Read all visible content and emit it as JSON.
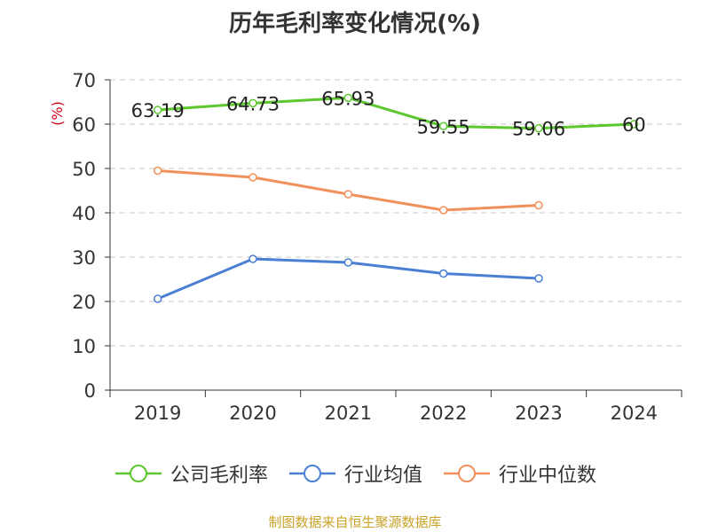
{
  "chart_data": {
    "type": "line",
    "title": "历年毛利率变化情况(%)",
    "ylabel": "(%)",
    "xlabel": "",
    "categories": [
      "2019",
      "2020",
      "2021",
      "2022",
      "2023",
      "2024"
    ],
    "yticks": [
      "0",
      "10",
      "20",
      "30",
      "40",
      "50",
      "60",
      "70"
    ],
    "ylim": [
      0,
      70
    ],
    "grid": true,
    "legend_position": "bottom",
    "series": [
      {
        "name": "公司毛利率",
        "color": "#5cc72e",
        "values": [
          63.19,
          64.73,
          65.93,
          59.55,
          59.06,
          60
        ],
        "labels": [
          "63.19",
          "64.73",
          "65.93",
          "59.55",
          "59.06",
          "60"
        ]
      },
      {
        "name": "行业均值",
        "color": "#4a7fd4",
        "values": [
          20.6,
          29.6,
          28.8,
          26.3,
          25.2,
          null
        ]
      },
      {
        "name": "行业中位数",
        "color": "#f0905a",
        "values": [
          49.5,
          48.0,
          44.2,
          40.6,
          41.7,
          null
        ]
      }
    ]
  },
  "source_text": "制图数据来自恒生聚源数据库"
}
